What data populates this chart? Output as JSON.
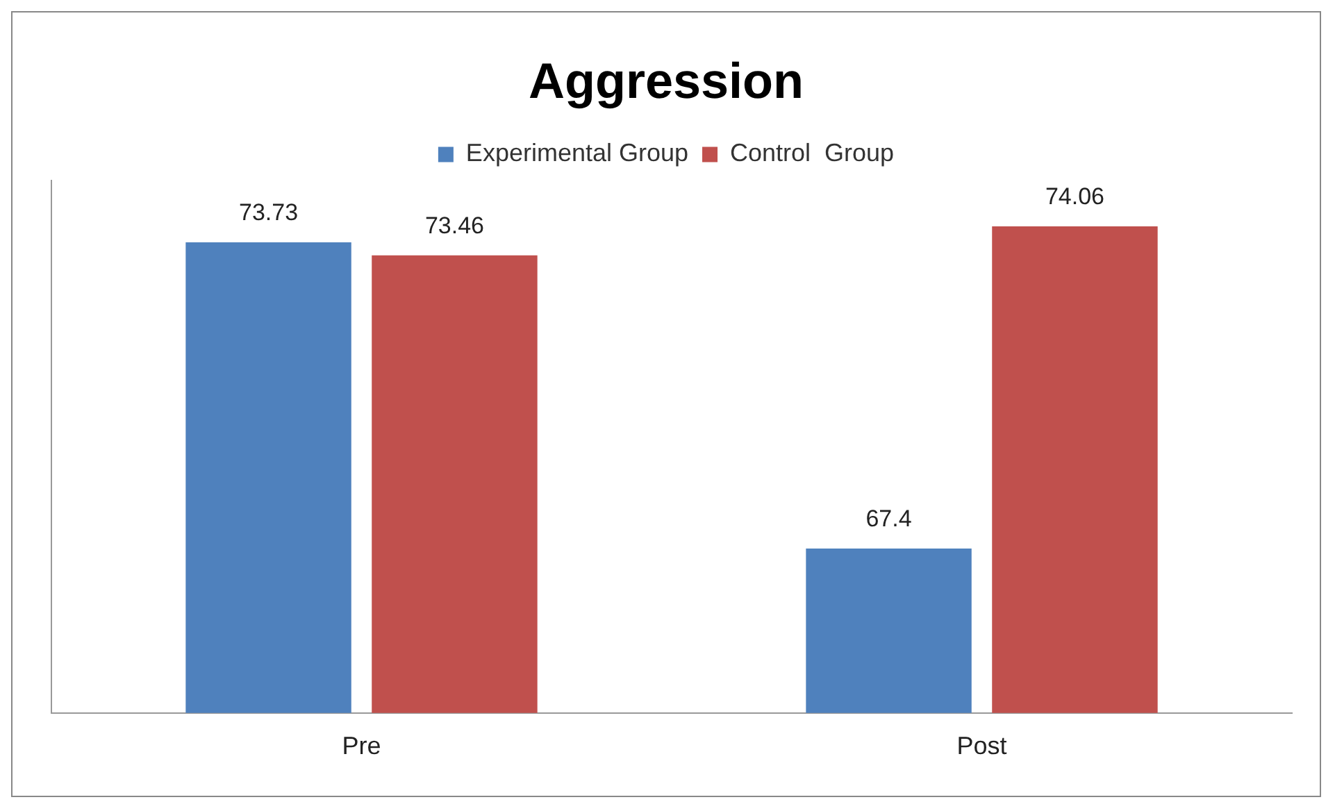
{
  "chart_data": {
    "type": "bar",
    "title": "Aggression",
    "categories": [
      "Pre",
      "Post"
    ],
    "series": [
      {
        "name": "Experimental Group",
        "color": "#4f81bd",
        "values": [
          73.73,
          67.4
        ]
      },
      {
        "name": "Control  Group",
        "color": "#c0504d",
        "values": [
          73.46,
          74.06
        ]
      }
    ],
    "ylim": [
      64,
      75
    ],
    "tick_labels": "x",
    "data_labels": true,
    "legend": "top",
    "grid": false
  }
}
